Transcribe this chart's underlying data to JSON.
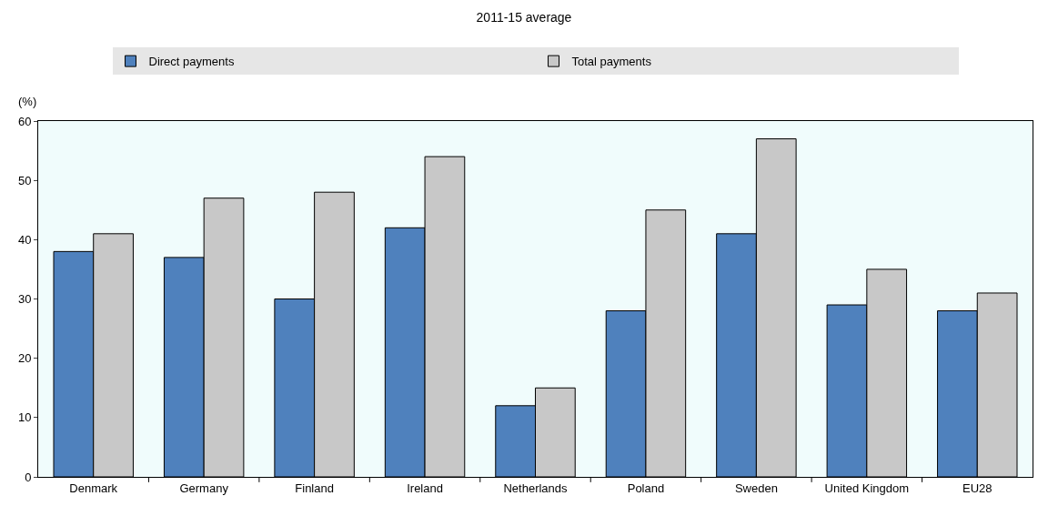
{
  "chart_data": {
    "type": "bar",
    "title": "2011-15 average",
    "ylabel": "(%)",
    "categories": [
      "Denmark",
      "Germany",
      "Finland",
      "Ireland",
      "Netherlands",
      "Poland",
      "Sweden",
      "United Kingdom",
      "EU28"
    ],
    "series": [
      {
        "name": "Direct payments",
        "color": "#4f81bd",
        "values": [
          38,
          37,
          30,
          42,
          12,
          28,
          41,
          29,
          28
        ]
      },
      {
        "name": "Total payments",
        "color": "#c8c8c8",
        "values": [
          41,
          47,
          48,
          54,
          15,
          45,
          57,
          35,
          31
        ]
      }
    ],
    "ylim": [
      0,
      60
    ],
    "yticks": [
      0,
      10,
      20,
      30,
      40,
      50,
      60
    ],
    "grid": false,
    "legend": "top"
  }
}
